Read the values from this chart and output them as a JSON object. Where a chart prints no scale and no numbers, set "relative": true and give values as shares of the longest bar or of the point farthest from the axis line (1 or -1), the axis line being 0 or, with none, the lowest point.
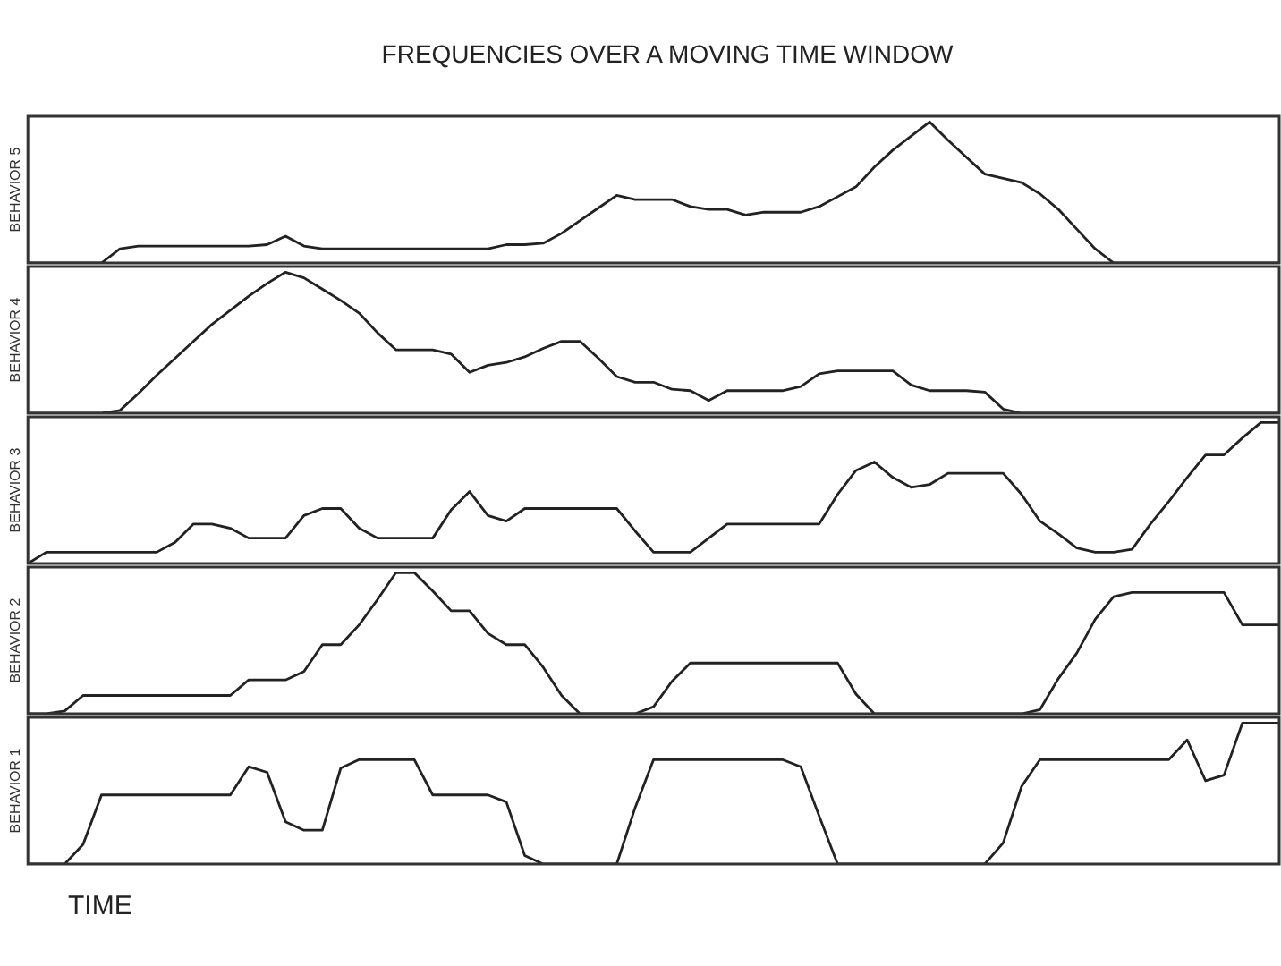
{
  "chart_data": [
    {
      "type": "line",
      "title": "FREQUENCIES OVER A MOVING TIME WINDOW",
      "ylabel": "BEHAVIOR 5",
      "relative": true,
      "categories": [
        null,
        null,
        null,
        null,
        null,
        null,
        null,
        null,
        null,
        null,
        null,
        null,
        null,
        null,
        null,
        null,
        null,
        null,
        null,
        null,
        null,
        null,
        null,
        null,
        null,
        null,
        null,
        null,
        null,
        null,
        null,
        null,
        null,
        null,
        null,
        null,
        null,
        null,
        null,
        null,
        null,
        null,
        null,
        null,
        null,
        null,
        null,
        null,
        null,
        null,
        null,
        null,
        null,
        null,
        null,
        null,
        null,
        null,
        null,
        null,
        null,
        null,
        null,
        null,
        null,
        null,
        null,
        null,
        null
      ],
      "series": [
        {
          "color": "#222222",
          "values": [
            0,
            0,
            0,
            0,
            0,
            0.1,
            0.12,
            0.12,
            0.12,
            0.12,
            0.12,
            0.12,
            0.12,
            0.13,
            0.19,
            0.12,
            0.1,
            0.1,
            0.1,
            0.1,
            0.1,
            0.1,
            0.1,
            0.1,
            0.1,
            0.1,
            0.13,
            0.13,
            0.14,
            0.21,
            0.3,
            0.39,
            0.48,
            0.45,
            0.45,
            0.45,
            0.4,
            0.38,
            0.38,
            0.34,
            0.36,
            0.36,
            0.36,
            0.4,
            0.47,
            0.54,
            0.68,
            0.8,
            0.9,
            1,
            0.87,
            0.75,
            0.63,
            0.6,
            0.57,
            0.49,
            0.38,
            0.24,
            0.1,
            0,
            0,
            0,
            0,
            0,
            0,
            0,
            0,
            0,
            0
          ]
        }
      ]
    },
    {
      "type": "line",
      "ylabel": "BEHAVIOR 4",
      "relative": true,
      "categories": [
        null,
        null,
        null,
        null,
        null,
        null,
        null,
        null,
        null,
        null,
        null,
        null,
        null,
        null,
        null,
        null,
        null,
        null,
        null,
        null,
        null,
        null,
        null,
        null,
        null,
        null,
        null,
        null,
        null,
        null,
        null,
        null,
        null,
        null,
        null,
        null,
        null,
        null,
        null,
        null,
        null,
        null,
        null,
        null,
        null,
        null,
        null,
        null,
        null,
        null,
        null,
        null,
        null,
        null,
        null,
        null,
        null,
        null,
        null,
        null,
        null,
        null,
        null,
        null,
        null,
        null,
        null,
        null,
        null
      ],
      "series": [
        {
          "color": "#222222",
          "values": [
            0,
            0,
            0,
            0,
            0,
            0.02,
            0.14,
            0.27,
            0.39,
            0.51,
            0.63,
            0.73,
            0.83,
            0.92,
            1,
            0.96,
            0.88,
            0.8,
            0.71,
            0.57,
            0.45,
            0.45,
            0.45,
            0.42,
            0.29,
            0.34,
            0.36,
            0.4,
            0.46,
            0.51,
            0.51,
            0.39,
            0.26,
            0.22,
            0.22,
            0.17,
            0.16,
            0.09,
            0.16,
            0.16,
            0.16,
            0.16,
            0.19,
            0.28,
            0.3,
            0.3,
            0.3,
            0.3,
            0.2,
            0.16,
            0.16,
            0.16,
            0.15,
            0.03,
            0,
            0,
            0,
            0,
            0,
            0,
            0,
            0,
            0,
            0,
            0,
            0,
            0,
            0,
            0
          ]
        }
      ]
    },
    {
      "type": "line",
      "ylabel": "BEHAVIOR 3",
      "relative": true,
      "categories": [
        null,
        null,
        null,
        null,
        null,
        null,
        null,
        null,
        null,
        null,
        null,
        null,
        null,
        null,
        null,
        null,
        null,
        null,
        null,
        null,
        null,
        null,
        null,
        null,
        null,
        null,
        null,
        null,
        null,
        null,
        null,
        null,
        null,
        null,
        null,
        null,
        null,
        null,
        null,
        null,
        null,
        null,
        null,
        null,
        null,
        null,
        null,
        null,
        null,
        null,
        null,
        null,
        null,
        null,
        null,
        null,
        null,
        null,
        null,
        null,
        null,
        null,
        null,
        null,
        null,
        null,
        null,
        null,
        null
      ],
      "series": [
        {
          "color": "#222222",
          "values": [
            0,
            0.08,
            0.08,
            0.08,
            0.08,
            0.08,
            0.08,
            0.08,
            0.15,
            0.28,
            0.28,
            0.25,
            0.18,
            0.18,
            0.18,
            0.34,
            0.39,
            0.39,
            0.25,
            0.18,
            0.18,
            0.18,
            0.18,
            0.38,
            0.51,
            0.34,
            0.3,
            0.39,
            0.39,
            0.39,
            0.39,
            0.39,
            0.39,
            0.23,
            0.08,
            0.08,
            0.08,
            0.18,
            0.28,
            0.28,
            0.28,
            0.28,
            0.28,
            0.28,
            0.49,
            0.66,
            0.72,
            0.61,
            0.54,
            0.56,
            0.64,
            0.64,
            0.64,
            0.64,
            0.49,
            0.3,
            0.21,
            0.11,
            0.08,
            0.08,
            0.1,
            0.28,
            0.44,
            0.61,
            0.77,
            0.77,
            0.89,
            1,
            1
          ]
        }
      ]
    },
    {
      "type": "line",
      "ylabel": "BEHAVIOR 2",
      "relative": true,
      "categories": [
        null,
        null,
        null,
        null,
        null,
        null,
        null,
        null,
        null,
        null,
        null,
        null,
        null,
        null,
        null,
        null,
        null,
        null,
        null,
        null,
        null,
        null,
        null,
        null,
        null,
        null,
        null,
        null,
        null,
        null,
        null,
        null,
        null,
        null,
        null,
        null,
        null,
        null,
        null,
        null,
        null,
        null,
        null,
        null,
        null,
        null,
        null,
        null,
        null,
        null,
        null,
        null,
        null,
        null,
        null,
        null,
        null,
        null,
        null,
        null,
        null,
        null,
        null,
        null,
        null,
        null,
        null,
        null,
        null
      ],
      "series": [
        {
          "color": "#222222",
          "values": [
            0,
            0,
            0.02,
            0.13,
            0.13,
            0.13,
            0.13,
            0.13,
            0.13,
            0.13,
            0.13,
            0.13,
            0.24,
            0.24,
            0.24,
            0.3,
            0.49,
            0.49,
            0.63,
            0.81,
            1,
            1,
            0.87,
            0.73,
            0.73,
            0.57,
            0.49,
            0.49,
            0.33,
            0.13,
            0,
            0,
            0,
            0,
            0.05,
            0.23,
            0.36,
            0.36,
            0.36,
            0.36,
            0.36,
            0.36,
            0.36,
            0.36,
            0.36,
            0.14,
            0,
            0,
            0,
            0,
            0,
            0,
            0,
            0,
            0,
            0.03,
            0.25,
            0.43,
            0.67,
            0.83,
            0.86,
            0.86,
            0.86,
            0.86,
            0.86,
            0.86,
            0.63,
            0.63,
            0.63
          ]
        }
      ]
    },
    {
      "type": "line",
      "ylabel": "BEHAVIOR 1",
      "xlabel": "TIME",
      "relative": true,
      "categories": [
        null,
        null,
        null,
        null,
        null,
        null,
        null,
        null,
        null,
        null,
        null,
        null,
        null,
        null,
        null,
        null,
        null,
        null,
        null,
        null,
        null,
        null,
        null,
        null,
        null,
        null,
        null,
        null,
        null,
        null,
        null,
        null,
        null,
        null,
        null,
        null,
        null,
        null,
        null,
        null,
        null,
        null,
        null,
        null,
        null,
        null,
        null,
        null,
        null,
        null,
        null,
        null,
        null,
        null,
        null,
        null,
        null,
        null,
        null,
        null,
        null,
        null,
        null,
        null,
        null,
        null,
        null,
        null,
        null
      ],
      "series": [
        {
          "color": "#222222",
          "values": [
            0,
            0,
            0,
            0.14,
            0.49,
            0.49,
            0.49,
            0.49,
            0.49,
            0.49,
            0.49,
            0.49,
            0.69,
            0.65,
            0.3,
            0.24,
            0.24,
            0.68,
            0.74,
            0.74,
            0.74,
            0.74,
            0.49,
            0.49,
            0.49,
            0.49,
            0.44,
            0.06,
            0,
            0,
            0,
            0,
            0,
            0.4,
            0.74,
            0.74,
            0.74,
            0.74,
            0.74,
            0.74,
            0.74,
            0.74,
            0.69,
            0.34,
            0,
            0,
            0,
            0,
            0,
            0,
            0,
            0,
            0,
            0.15,
            0.55,
            0.74,
            0.74,
            0.74,
            0.74,
            0.74,
            0.74,
            0.74,
            0.74,
            0.88,
            0.59,
            0.63,
            1,
            1,
            1
          ]
        }
      ]
    }
  ]
}
